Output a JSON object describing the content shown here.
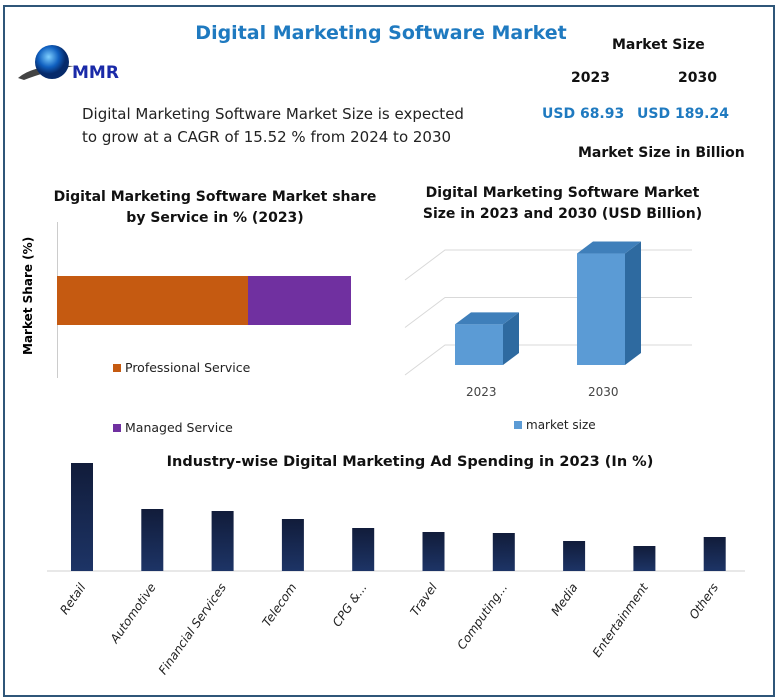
{
  "header": {
    "title": "Digital Marketing Software Market",
    "logo_text": "MMR",
    "description_line1": "Digital Marketing Software Market Size is expected",
    "description_line2": "to grow at a CAGR of 15.52 % from 2024 to 2030",
    "market_size_label": "Market Size",
    "year_2023": "2023",
    "year_2030": "2030",
    "value_2023": "USD 68.93",
    "value_2030": "USD 189.24",
    "unit_note": "Market Size in Billion"
  },
  "colors": {
    "accent": "#1f7ac0",
    "professional": "#c55a11",
    "managed": "#7030a0",
    "market_bar": "#5b9bd5",
    "industry_bar": "#1a2d5a"
  },
  "chart_data": [
    {
      "type": "bar",
      "orientation": "horizontal-stacked",
      "title_line1": "Digital Marketing Software Market share",
      "title_line2": "by Service in % (2023)",
      "ylabel": "Market Share (%)",
      "series": [
        {
          "name": "Professional Service",
          "values": [
            65
          ]
        },
        {
          "name": "Managed Service",
          "values": [
            35
          ]
        }
      ],
      "legend": "bottom"
    },
    {
      "type": "bar",
      "style": "3d",
      "title_line1": "Digital Marketing Software Market",
      "title_line2": "Size in 2023 and 2030 (USD Billion)",
      "categories": [
        "2023",
        "2030"
      ],
      "series": [
        {
          "name": "market size",
          "values": [
            68.93,
            189.24
          ]
        }
      ],
      "ylim": [
        0,
        250
      ],
      "grid": true,
      "legend": "bottom"
    },
    {
      "type": "bar",
      "title": "Industry-wise Digital Marketing Ad  Spending in 2023 (In %)",
      "categories": [
        "Retail",
        "Automotive",
        "Financial Services",
        "Telecom",
        "CPG &...",
        "Travel",
        "Computing...",
        "Media",
        "Entertainment",
        "Others"
      ],
      "values": [
        108,
        62,
        60,
        52,
        43,
        39,
        38,
        30,
        25,
        34
      ],
      "ylim": [
        0,
        110
      ],
      "grid": false
    }
  ]
}
